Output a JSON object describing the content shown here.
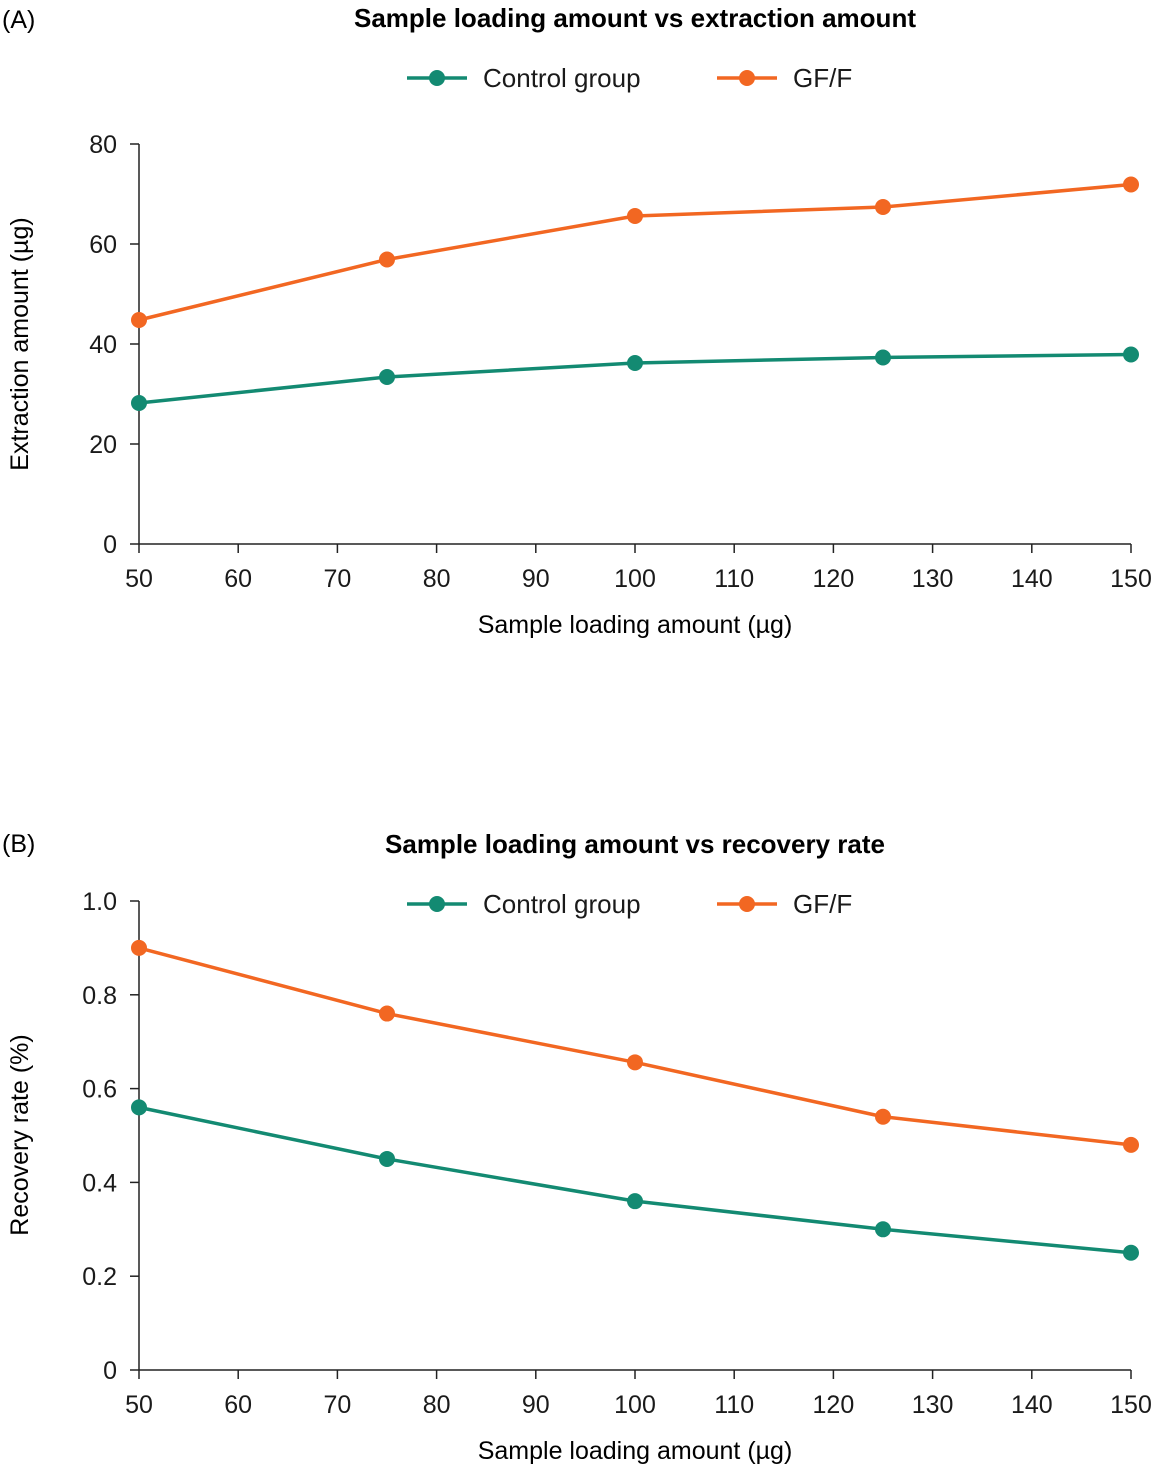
{
  "chart_data": [
    {
      "panel_label": "(A)",
      "type": "line",
      "title": "Sample loading amount vs extraction amount",
      "xlabel": "Sample loading amount (µg)",
      "ylabel": "Extraction amount (µg)",
      "xlim": [
        50,
        150
      ],
      "ylim": [
        0,
        80
      ],
      "x_ticks": [
        50,
        60,
        70,
        80,
        90,
        100,
        110,
        120,
        130,
        140,
        150
      ],
      "y_ticks": [
        0,
        20,
        40,
        60,
        80
      ],
      "y_tick_labels": [
        "0",
        "20",
        "40",
        "60",
        "80"
      ],
      "x": [
        50,
        75,
        100,
        125,
        150
      ],
      "series": [
        {
          "name": "Control group",
          "color": "#138a72",
          "values": [
            28.2,
            33.4,
            36.2,
            37.3,
            37.9
          ]
        },
        {
          "name": "GF/F",
          "color": "#f26722",
          "values": [
            44.8,
            56.9,
            65.6,
            67.4,
            71.9
          ]
        }
      ],
      "legend_position": "top-center",
      "grid": false
    },
    {
      "panel_label": "(B)",
      "type": "line",
      "title": "Sample loading amount vs recovery rate",
      "xlabel": "Sample loading amount (µg)",
      "ylabel": "Recovery rate (%)",
      "xlim": [
        50,
        150
      ],
      "ylim": [
        0,
        1.0
      ],
      "x_ticks": [
        50,
        60,
        70,
        80,
        90,
        100,
        110,
        120,
        130,
        140,
        150
      ],
      "y_ticks": [
        0,
        0.2,
        0.4,
        0.6,
        0.8,
        1.0
      ],
      "y_tick_labels": [
        "0",
        "0.2",
        "0.4",
        "0.6",
        "0.8",
        "1.0"
      ],
      "x": [
        50,
        75,
        100,
        125,
        150
      ],
      "series": [
        {
          "name": "Control group",
          "color": "#138a72",
          "values": [
            0.56,
            0.45,
            0.36,
            0.3,
            0.25
          ]
        },
        {
          "name": "GF/F",
          "color": "#f26722",
          "values": [
            0.9,
            0.76,
            0.656,
            0.54,
            0.48
          ]
        }
      ],
      "legend_position": "top-center",
      "grid": false
    }
  ]
}
